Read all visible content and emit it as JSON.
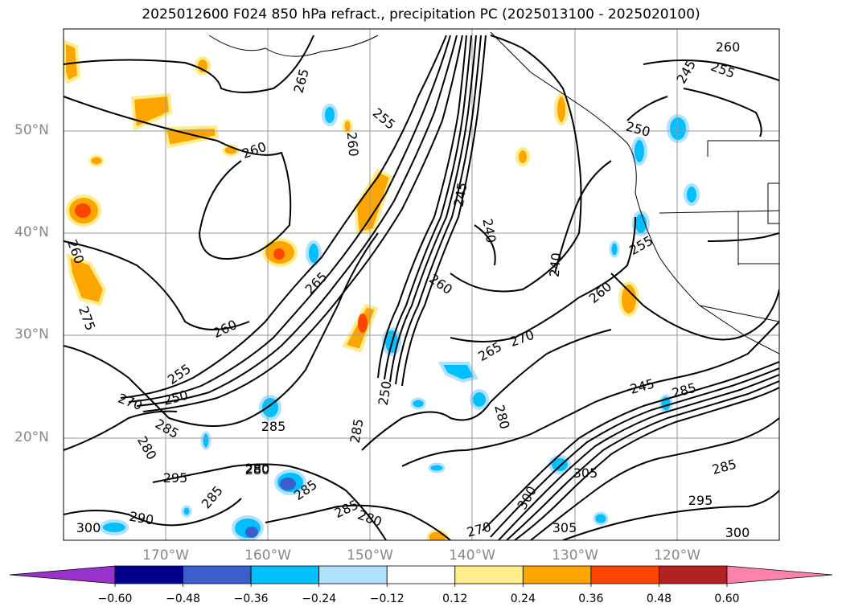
{
  "title": "2025012600 F024 850 hPa refract., precipitation PC (2025013100 - 2025020100)",
  "lat_labels": [
    "50°N",
    "40°N",
    "30°N",
    "20°N"
  ],
  "lon_labels": [
    "170°W",
    "160°W",
    "150°W",
    "140°W",
    "130°W",
    "120°W"
  ],
  "contour_labels": [
    "260",
    "255",
    "245",
    "250",
    "265",
    "255",
    "260",
    "260",
    "245",
    "240",
    "260",
    "260",
    "255",
    "265",
    "240",
    "260",
    "275",
    "260",
    "255",
    "250",
    "270",
    "285",
    "280",
    "295",
    "285",
    "280",
    "265",
    "270",
    "250",
    "285",
    "280",
    "285",
    "285",
    "280",
    "290",
    "300",
    "285",
    "280",
    "270",
    "305",
    "300",
    "295",
    "300",
    "305",
    "285",
    "245",
    "285"
  ],
  "colorbar": {
    "ticks": [
      "−0.60",
      "−0.48",
      "−0.36",
      "−0.24",
      "−0.12",
      "0.12",
      "0.24",
      "0.36",
      "0.48",
      "0.60"
    ],
    "colors": [
      "#9932cc",
      "#00008b",
      "#3a5fcd",
      "#00bfff",
      "#b0e2ff",
      "#ffffff",
      "#ffec8b",
      "#ffa500",
      "#ff4500",
      "#b22222",
      "#ff82ab"
    ]
  },
  "colors": {
    "contour": "#000000",
    "grid": "#999999",
    "axis_label": "#888888"
  }
}
